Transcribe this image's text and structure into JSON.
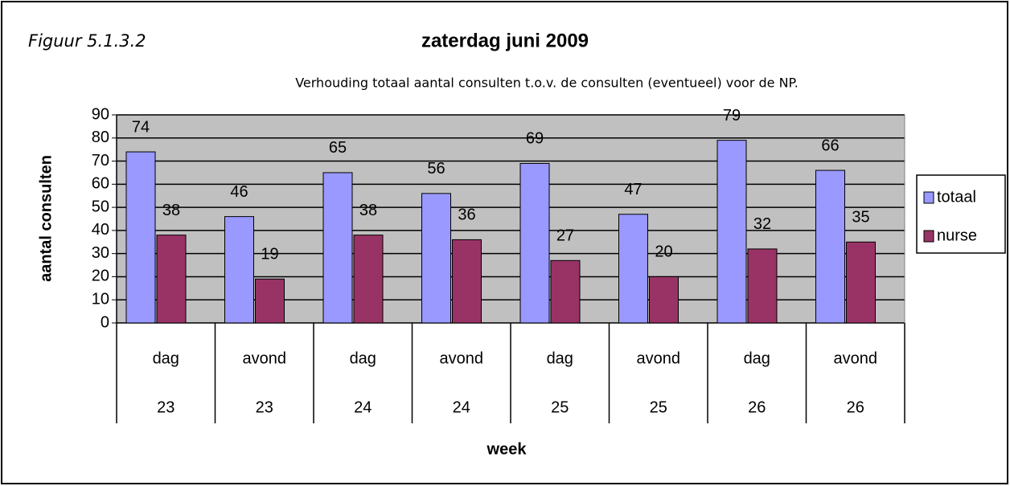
{
  "chart_data": {
    "type": "bar",
    "figure_label": "Figuur 5.1.3.2",
    "title": "zaterdag juni 2009",
    "subtitle": "Verhouding totaal aantal consulten t.o.v. de consulten (eventueel) voor de NP.",
    "x_label": "week",
    "y_label": "aantal consulten",
    "categories": [
      "dag",
      "avond",
      "dag",
      "avond",
      "dag",
      "avond",
      "dag",
      "avond"
    ],
    "weeks": [
      "23",
      "23",
      "24",
      "24",
      "25",
      "25",
      "26",
      "26"
    ],
    "series": [
      {
        "name": "totaal",
        "color": "#9999ff",
        "values": [
          74,
          46,
          65,
          56,
          69,
          47,
          79,
          66
        ]
      },
      {
        "name": "nurse",
        "color": "#993366",
        "values": [
          38,
          19,
          38,
          36,
          27,
          20,
          32,
          35
        ]
      }
    ],
    "ylim": [
      0,
      90
    ],
    "yticks": [
      0,
      10,
      20,
      30,
      40,
      50,
      60,
      70,
      80,
      90
    ],
    "grid": true,
    "plot_background": "#c0c0c0",
    "legend": "right"
  }
}
